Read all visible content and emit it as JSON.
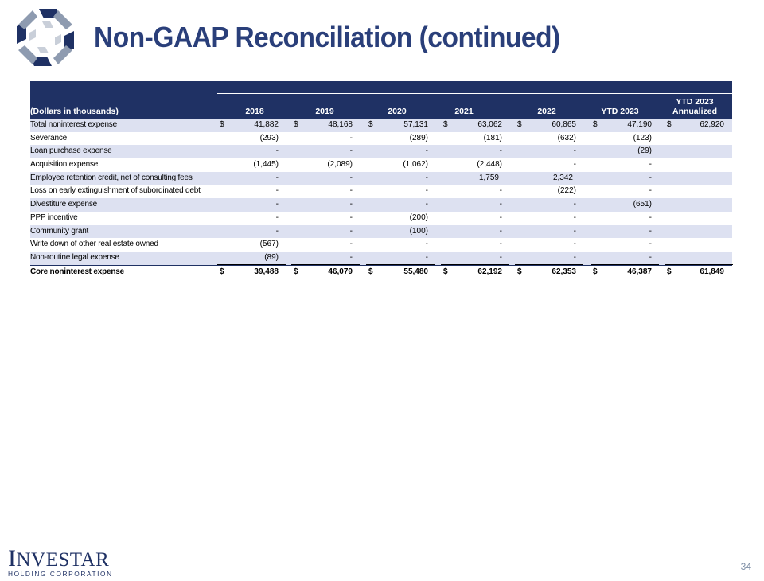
{
  "page": {
    "title": "Non-GAAP Reconciliation (continued)",
    "page_number": "34"
  },
  "footer": {
    "brand_name": "Investar",
    "brand_sub": "HOLDING CORPORATION"
  },
  "table": {
    "unit_label": "(Dollars in thousands)",
    "columns": [
      "2018",
      "2019",
      "2020",
      "2021",
      "2022",
      "YTD 2023",
      "YTD 2023 Annualized"
    ],
    "annualized_line1": "YTD 2023",
    "annualized_line2": "Annualized",
    "currency_symbol": "$",
    "rows": [
      {
        "label": "Total noninterest expense",
        "values": [
          "41,882",
          "48,168",
          "57,131",
          "63,062",
          "60,865",
          "47,190",
          "62,920"
        ],
        "dollar": true
      },
      {
        "label": "Severance",
        "values": [
          "(293)",
          "-",
          "(289)",
          "(181)",
          "(632)",
          "(123)",
          ""
        ]
      },
      {
        "label": "Loan purchase expense",
        "values": [
          "-",
          "-",
          "-",
          "-",
          "-",
          "(29)",
          ""
        ]
      },
      {
        "label": "Acquisition expense",
        "values": [
          "(1,445)",
          "(2,089)",
          "(1,062)",
          "(2,448)",
          "-",
          "-",
          ""
        ]
      },
      {
        "label": "Employee retention credit, net of consulting fees",
        "values": [
          "-",
          "-",
          "-",
          "1,759",
          "2,342",
          "-",
          ""
        ]
      },
      {
        "label": "Loss on early extinguishment of subordinated debt",
        "values": [
          "-",
          "-",
          "-",
          "-",
          "(222)",
          "-",
          ""
        ]
      },
      {
        "label": "Divestiture expense",
        "values": [
          "-",
          "-",
          "-",
          "-",
          "-",
          "(651)",
          ""
        ]
      },
      {
        "label": "PPP incentive",
        "values": [
          "-",
          "-",
          "(200)",
          "-",
          "-",
          "-",
          ""
        ]
      },
      {
        "label": "Community grant",
        "values": [
          "-",
          "-",
          "(100)",
          "-",
          "-",
          "-",
          ""
        ]
      },
      {
        "label": "Write down of other real estate owned",
        "values": [
          "(567)",
          "-",
          "-",
          "-",
          "-",
          "-",
          ""
        ]
      },
      {
        "label": "Non-routine legal expense",
        "values": [
          "(89)",
          "-",
          "-",
          "-",
          "-",
          "-",
          ""
        ]
      },
      {
        "label": "Core noninterest expense",
        "values": [
          "39,488",
          "46,079",
          "55,480",
          "62,192",
          "62,353",
          "46,387",
          "61,849"
        ],
        "dollar": true,
        "bold": true
      }
    ]
  },
  "colors": {
    "brand_navy": "#1f3164",
    "title_blue": "#2a3f7a",
    "row_shade": "#dde1f1"
  }
}
